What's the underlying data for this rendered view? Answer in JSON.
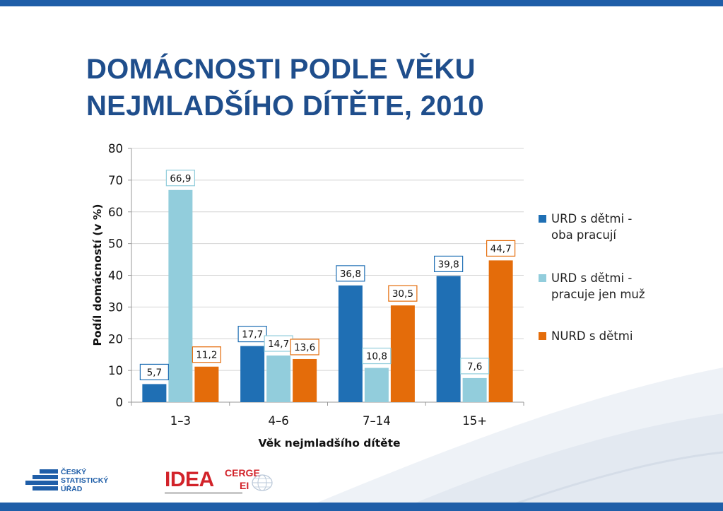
{
  "title": {
    "line1": "DOMÁCNOSTI PODLE VĚKU",
    "line2": "NEJMLADŠÍHO DÍTĚTE, 2010"
  },
  "chart_data": {
    "type": "bar",
    "categories": [
      "1–3",
      "4–6",
      "7–14",
      "15+"
    ],
    "series": [
      {
        "name": "URD s dětmi - oba pracují",
        "color": "#1f6fb4",
        "values": [
          5.7,
          17.7,
          36.8,
          39.8
        ],
        "labels": [
          "5,7",
          "17,7",
          "36,8",
          "39,8"
        ],
        "legend_lines": [
          "URD s dětmi -",
          "oba pracují"
        ]
      },
      {
        "name": "URD s dětmi - pracuje jen muž",
        "color": "#92cddc",
        "values": [
          66.9,
          14.7,
          10.8,
          7.6
        ],
        "labels": [
          "66,9",
          "14,7",
          "10,8",
          "7,6"
        ],
        "legend_lines": [
          "URD s dětmi -",
          "pracuje jen muž"
        ]
      },
      {
        "name": "NURD s dětmi",
        "color": "#e46c0a",
        "values": [
          11.2,
          13.6,
          30.5,
          44.7
        ],
        "labels": [
          "11,2",
          "13,6",
          "30,5",
          "44,7"
        ],
        "legend_lines": [
          "NURD s dětmi"
        ]
      }
    ],
    "xlabel": "Věk nejmladšího dítěte",
    "ylabel": "Podíl domácností (v %)",
    "ylim": [
      0,
      80
    ],
    "yticks": [
      0,
      10,
      20,
      30,
      40,
      50,
      60,
      70,
      80
    ],
    "grid": true,
    "legend": "right"
  },
  "logos": {
    "csu_lines": [
      "ČESKÝ",
      "STATISTICKÝ",
      "ÚŘAD"
    ],
    "idea_word": "IDEA",
    "idea_cerge": "CERGE",
    "idea_ei": "EI"
  },
  "colors": {
    "brand_blue": "#1f5ea8",
    "title_blue": "#1f4e8c",
    "idea_red": "#d2232a"
  }
}
